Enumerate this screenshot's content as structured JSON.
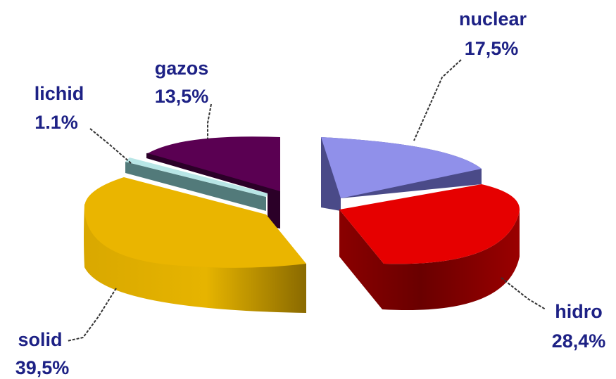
{
  "chart_data": {
    "type": "pie",
    "style": "3d-exploded",
    "title": "",
    "slices": [
      {
        "name": "nuclear",
        "value_label": "17,5%",
        "value": 17.5,
        "color": "#8f8fe6"
      },
      {
        "name": "hidro",
        "value_label": "28,4%",
        "value": 28.4,
        "color": "#e60000"
      },
      {
        "name": "solid",
        "value_label": "39,5%",
        "value": 39.5,
        "color": "#e8b400"
      },
      {
        "name": "lichid",
        "value_label": "1.1%",
        "value": 1.1,
        "color": "#7fa8a8"
      },
      {
        "name": "gazos",
        "value_label": "13,5%",
        "value": 13.5,
        "color": "#5a0050"
      }
    ],
    "legend": "none",
    "grid": false
  }
}
